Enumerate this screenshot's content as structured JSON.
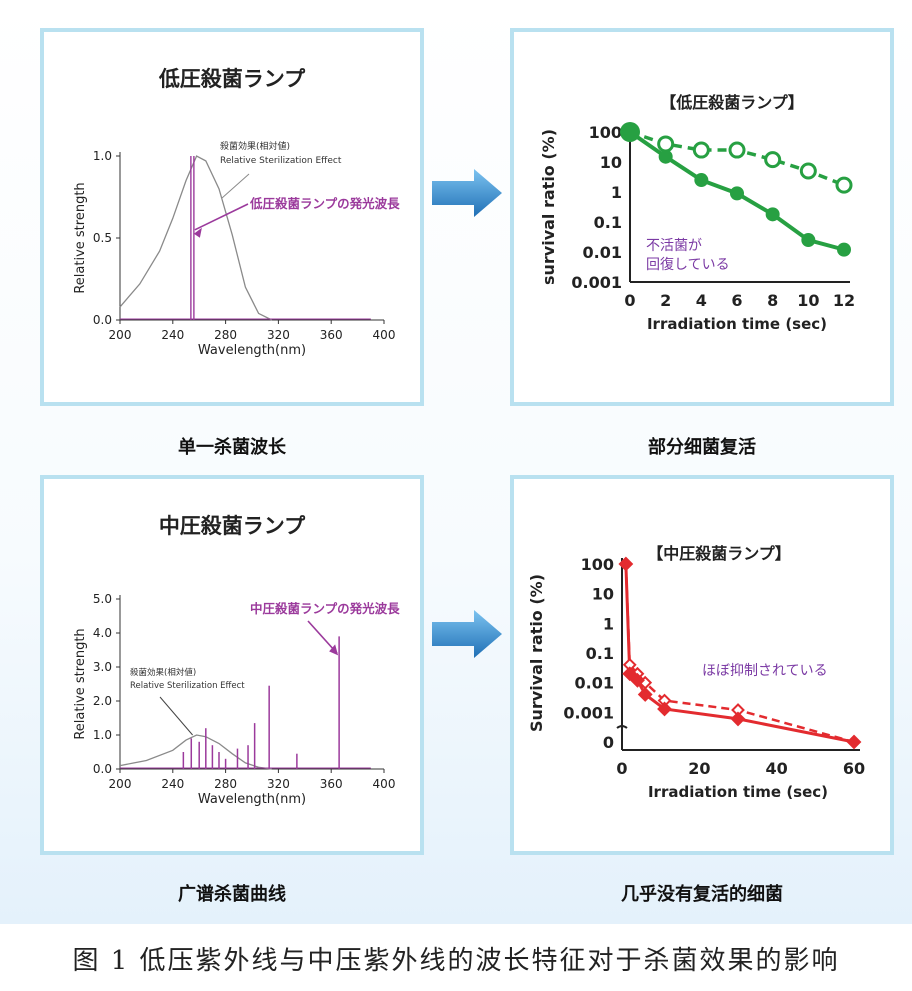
{
  "figure_caption": "图 1 低压紫外线与中压紫外线的波长特征对于杀菌效果的影响",
  "captions": {
    "top_left": "单一杀菌波长",
    "top_right": "部分细菌复活",
    "bottom_left": "广谱杀菌曲线",
    "bottom_right": "几乎没有复活的细菌"
  },
  "colors": {
    "purple": "#9b3a9c",
    "green": "#27a042",
    "red": "#e32b2f",
    "gray": "#8a8a8a",
    "panel_border": "#b9e1f0",
    "arrow": "#2e86c9"
  },
  "chart_data": [
    {
      "id": "lp_spectrum",
      "type": "line",
      "title": "低圧殺菌ランプ",
      "xlabel": "Wavelength(nm)",
      "ylabel": "Relative strength",
      "xlim": [
        200,
        400
      ],
      "ylim": [
        0,
        1.0
      ],
      "x_ticks": [
        "200",
        "240",
        "280",
        "320",
        "360",
        "400"
      ],
      "y_ticks": [
        "0.0",
        "0.5",
        "1.0"
      ],
      "annotations": [
        "殺菌効果(相対値)",
        "Relative Sterilization Effect",
        "低圧殺菌ランプの発光波長"
      ],
      "series": [
        {
          "name": "殺菌効果(相対値)",
          "x": [
            200,
            215,
            230,
            240,
            250,
            258,
            265,
            275,
            285,
            295,
            305,
            315
          ],
          "y": [
            0.08,
            0.22,
            0.42,
            0.62,
            0.85,
            1.0,
            0.97,
            0.8,
            0.52,
            0.2,
            0.04,
            0.0
          ]
        },
        {
          "name": "低圧殺菌ランプの発光波長",
          "x": [
            253.7
          ],
          "y": [
            1.0
          ]
        }
      ]
    },
    {
      "id": "lp_survival",
      "type": "line",
      "title": "【低圧殺菌ランプ】",
      "xlabel": "Irradiation time (sec)",
      "ylabel": "survival ratio (%)",
      "log_y": true,
      "xlim": [
        0,
        12
      ],
      "ylim": [
        0.001,
        100
      ],
      "x_ticks": [
        "0",
        "2",
        "4",
        "6",
        "8",
        "10",
        "12"
      ],
      "y_ticks": [
        "100",
        "10",
        "1",
        "0.1",
        "0.01",
        "0.001"
      ],
      "annotation": [
        "不活菌が",
        "回復している"
      ],
      "series": [
        {
          "style": "solid",
          "x": [
            0,
            2,
            4,
            6,
            8,
            10,
            12
          ],
          "y": [
            100,
            15,
            2.5,
            0.9,
            0.18,
            0.025,
            0.012
          ]
        },
        {
          "style": "dashed",
          "x": [
            0,
            2,
            4,
            6,
            8,
            10,
            12
          ],
          "y": [
            100,
            40,
            25,
            25,
            12,
            5,
            1.7
          ]
        }
      ]
    },
    {
      "id": "mp_spectrum",
      "type": "line",
      "title": "中圧殺菌ランプ",
      "xlabel": "Wavelength(nm)",
      "ylabel": "Relative strength",
      "xlim": [
        200,
        400
      ],
      "ylim": [
        0,
        5.0
      ],
      "x_ticks": [
        "200",
        "240",
        "280",
        "320",
        "360",
        "400"
      ],
      "y_ticks": [
        "0.0",
        "1.0",
        "2.0",
        "3.0",
        "4.0",
        "5.0"
      ],
      "annotations": [
        "殺菌効果(相対値)",
        "Relative Sterilization Effect",
        "中圧殺菌ランプの発光波長"
      ],
      "series": [
        {
          "name": "殺菌効果(相対値)",
          "x": [
            200,
            220,
            240,
            250,
            258,
            265,
            275,
            285,
            295,
            305,
            315
          ],
          "y": [
            0.1,
            0.25,
            0.55,
            0.85,
            1.0,
            0.95,
            0.75,
            0.45,
            0.18,
            0.05,
            0.0
          ]
        },
        {
          "name": "中圧殺菌ランプの発光波長",
          "x": [
            248,
            254,
            260,
            265,
            270,
            275,
            280,
            289,
            297,
            302,
            313,
            334,
            366
          ],
          "y": [
            0.5,
            0.9,
            0.8,
            1.2,
            0.7,
            0.5,
            0.3,
            0.6,
            0.7,
            1.35,
            2.45,
            0.45,
            3.9
          ]
        }
      ]
    },
    {
      "id": "mp_survival",
      "type": "line",
      "title": "【中圧殺菌ランプ】",
      "xlabel": "Irradiation time (sec)",
      "ylabel": "Survival ratio (%)",
      "log_y": true,
      "xlim": [
        0,
        60
      ],
      "ylim": [
        0,
        100
      ],
      "x_ticks": [
        "0",
        "20",
        "40",
        "60"
      ],
      "y_ticks": [
        "100",
        "10",
        "1",
        "0.1",
        "0.01",
        "0.001",
        "0"
      ],
      "annotation": "ほぼ抑制されている",
      "series": [
        {
          "style": "solid",
          "x": [
            1,
            2,
            4,
            6,
            11,
            30,
            60
          ],
          "y": [
            100,
            0.02,
            0.012,
            0.004,
            0.0013,
            0.0006,
            0
          ]
        },
        {
          "style": "dashed",
          "x": [
            1,
            2,
            4,
            6,
            11,
            30,
            60
          ],
          "y": [
            100,
            0.04,
            0.02,
            0.01,
            0.0025,
            0.0012,
            0
          ]
        }
      ]
    }
  ]
}
